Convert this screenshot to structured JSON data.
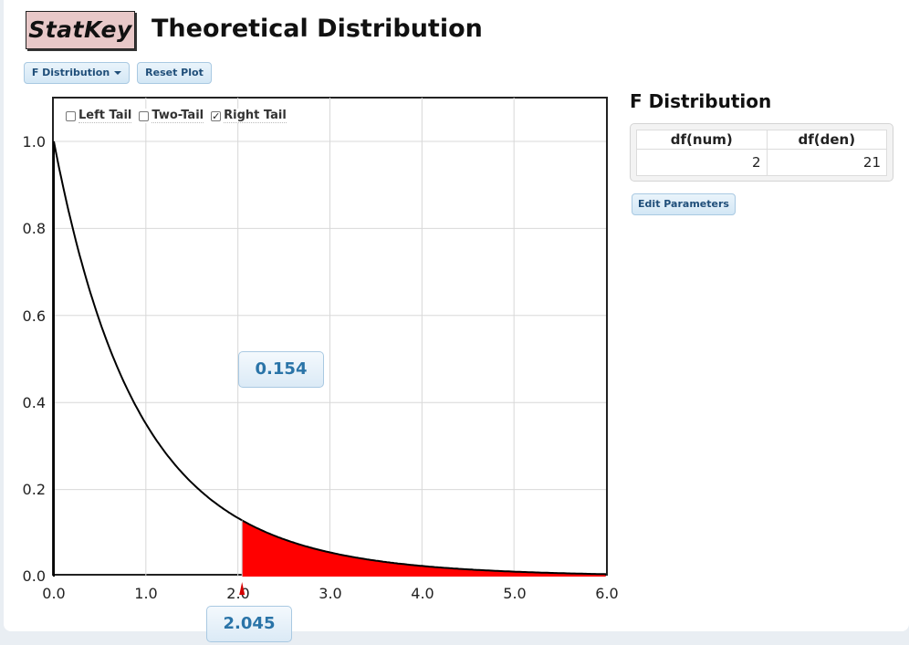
{
  "app": {
    "logo": "StatKey",
    "title": "Theoretical Distribution"
  },
  "toolbar": {
    "distribution_label": "F Distribution",
    "reset_label": "Reset Plot"
  },
  "tails": {
    "left_label": "Left Tail",
    "two_label": "Two-Tail",
    "right_label": "Right Tail",
    "left_checked": false,
    "two_checked": false,
    "right_checked": true,
    "check_mark": "✓"
  },
  "stats": {
    "tail_area": "0.154",
    "cutoff": "2.045"
  },
  "side": {
    "title": "F Distribution",
    "df_num_header": "df(num)",
    "df_den_header": "df(den)",
    "df_num_value": "2",
    "df_den_value": "21",
    "edit_label": "Edit Parameters"
  },
  "colors": {
    "tail_fill": "#ff0000",
    "curve": "#000000",
    "grid": "#d8d8d8",
    "button_text": "#1f4e79",
    "value_text": "#2a74a8",
    "logo_bg": "#e8c8c8"
  },
  "chart_data": {
    "type": "area",
    "distribution": "F",
    "df_num": 2,
    "df_den": 21,
    "xlim": [
      0,
      6
    ],
    "ylim": [
      0,
      1.1
    ],
    "x_ticks": [
      "0.0",
      "1.0",
      "2.0",
      "3.0",
      "4.0",
      "5.0",
      "6.0"
    ],
    "y_ticks": [
      "0.0",
      "0.2",
      "0.4",
      "0.6",
      "0.8",
      "1.0"
    ],
    "grid": true,
    "shaded_tail": "right",
    "cutoff": 2.045,
    "tail_area": 0.154,
    "x": [
      0,
      0.5,
      1.0,
      1.5,
      2.0,
      2.5,
      3.0,
      4.0,
      5.0,
      6.0
    ],
    "y": [
      1.0,
      0.61,
      0.36,
      0.22,
      0.135,
      0.085,
      0.055,
      0.024,
      0.011,
      0.005
    ]
  }
}
